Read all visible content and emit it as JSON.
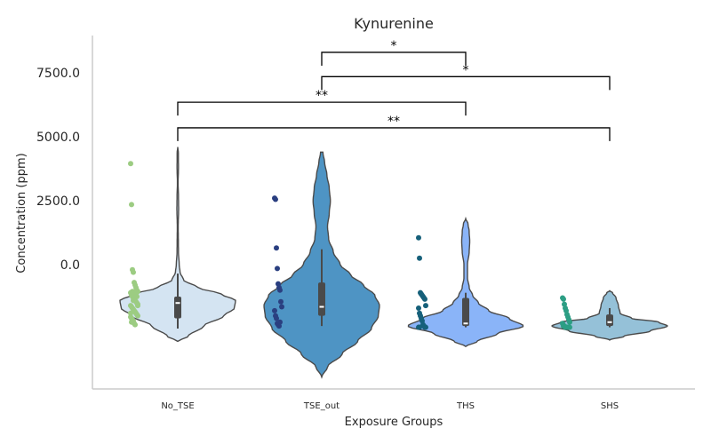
{
  "chart_data": {
    "type": "violin",
    "title": "Kynurenine",
    "xlabel": "Exposure Groups",
    "ylabel": "Concentration (ppm)",
    "ylim": [
      -5500,
      9000
    ],
    "yticks": [
      0,
      2500,
      5000,
      7500
    ],
    "ytick_labels": [
      "0.0",
      "2500.0",
      "5000.0",
      "7500.0"
    ],
    "grid": false,
    "categories": [
      "No_TSE",
      "TSE_out",
      "THS",
      "SHS"
    ],
    "groups": [
      {
        "name": "No_TSE",
        "violin_color": "#d4e4f2",
        "point_color": "#9ccc82",
        "range": [
          -3000,
          4600
        ],
        "box": [
          -2100,
          -1250
        ],
        "whisker": [
          -2500,
          -350
        ],
        "median": -1500,
        "density": [
          [
            -3000,
            0.0
          ],
          [
            -2800,
            0.18
          ],
          [
            -2400,
            0.45
          ],
          [
            -2000,
            0.8
          ],
          [
            -1700,
            0.98
          ],
          [
            -1400,
            1.0
          ],
          [
            -1150,
            0.75
          ],
          [
            -900,
            0.35
          ],
          [
            -600,
            0.1
          ],
          [
            -300,
            0.04
          ],
          [
            0,
            0.025
          ],
          [
            500,
            0.012
          ],
          [
            1500,
            0.008
          ],
          [
            2200,
            0.015
          ],
          [
            2600,
            0.013
          ],
          [
            3200,
            0.006
          ],
          [
            3800,
            0.012
          ],
          [
            4400,
            0.01
          ],
          [
            4600,
            0.0
          ]
        ],
        "points": [
          3950,
          2350,
          -200,
          -300,
          -700,
          -800,
          -900,
          -1000,
          -1050,
          -1100,
          -1200,
          -1250,
          -1300,
          -1350,
          -1400,
          -1450,
          -1500,
          -1550,
          -1600,
          -1650,
          -1700,
          -1750,
          -1800,
          -1850,
          -1900,
          -1950,
          -2000,
          -2050,
          -2100,
          -2150,
          -2200,
          -2300,
          -2350,
          -1150,
          -1250,
          -1600,
          -1900,
          -2250,
          -1050,
          -1400
        ]
      },
      {
        "name": "TSE_out",
        "violin_color": "#4e94c4",
        "point_color": "#2a3f80",
        "range": [
          -4400,
          4400
        ],
        "box": [
          -2000,
          -700
        ],
        "whisker": [
          -2400,
          600
        ],
        "median": -1650,
        "density": [
          [
            -4400,
            0.0
          ],
          [
            -4000,
            0.1
          ],
          [
            -3500,
            0.35
          ],
          [
            -3000,
            0.62
          ],
          [
            -2500,
            0.86
          ],
          [
            -2000,
            0.98
          ],
          [
            -1600,
            1.0
          ],
          [
            -1200,
            0.92
          ],
          [
            -800,
            0.72
          ],
          [
            -400,
            0.5
          ],
          [
            0,
            0.32
          ],
          [
            500,
            0.2
          ],
          [
            1000,
            0.12
          ],
          [
            1500,
            0.1
          ],
          [
            2000,
            0.13
          ],
          [
            2500,
            0.15
          ],
          [
            3000,
            0.13
          ],
          [
            3500,
            0.09
          ],
          [
            4000,
            0.05
          ],
          [
            4400,
            0.02
          ]
        ],
        "points": [
          2600,
          2550,
          650,
          -150,
          -750,
          -900,
          -1000,
          -1450,
          -1650,
          -1800,
          -2000,
          -2100,
          -2300,
          -2350,
          -2400,
          -2250
        ]
      },
      {
        "name": "THS",
        "violin_color": "#8ab4f8",
        "point_color": "#16607a",
        "range": [
          -3200,
          1800
        ],
        "box": [
          -2400,
          -1300
        ],
        "whisker": [
          -2450,
          -1100
        ],
        "median": -2300,
        "density": [
          [
            -3200,
            0.0
          ],
          [
            -3000,
            0.2
          ],
          [
            -2700,
            0.55
          ],
          [
            -2400,
            1.0
          ],
          [
            -2100,
            0.75
          ],
          [
            -1800,
            0.4
          ],
          [
            -1500,
            0.22
          ],
          [
            -1200,
            0.12
          ],
          [
            -900,
            0.06
          ],
          [
            -500,
            0.03
          ],
          [
            0,
            0.03
          ],
          [
            500,
            0.06
          ],
          [
            900,
            0.07
          ],
          [
            1300,
            0.06
          ],
          [
            1600,
            0.04
          ],
          [
            1800,
            0.0
          ]
        ],
        "points": [
          1050,
          250,
          -1100,
          -1150,
          -1200,
          -1250,
          -1300,
          -1350,
          -1600,
          -1700,
          -1900,
          -2000,
          -2100,
          -2200,
          -2350,
          -2400,
          -2450,
          -2450,
          -2450,
          -2450
        ]
      },
      {
        "name": "SHS",
        "violin_color": "#95c1d8",
        "point_color": "#2c9e84",
        "range": [
          -2950,
          -1020
        ],
        "box": [
          -2400,
          -1950
        ],
        "whisker": [
          -2450,
          -1700
        ],
        "median": -2250,
        "density": [
          [
            -2950,
            0.0
          ],
          [
            -2800,
            0.25
          ],
          [
            -2600,
            0.7
          ],
          [
            -2400,
            1.0
          ],
          [
            -2250,
            0.85
          ],
          [
            -2100,
            0.38
          ],
          [
            -1900,
            0.18
          ],
          [
            -1600,
            0.15
          ],
          [
            -1300,
            0.11
          ],
          [
            -1100,
            0.05
          ],
          [
            -1020,
            0.0
          ]
        ],
        "points": [
          -1300,
          -1350,
          -1550,
          -1700,
          -1800,
          -1950,
          -2050,
          -2150,
          -2250,
          -2300,
          -2400,
          -2400,
          -2450,
          -2450,
          -2450,
          -2450,
          -2450,
          -2450
        ]
      }
    ],
    "annotations": [
      {
        "from": "TSE_out",
        "to": "THS",
        "y": 8300,
        "text": "*"
      },
      {
        "from": "TSE_out",
        "to": "SHS",
        "y": 7350,
        "text": "*"
      },
      {
        "from": "No_TSE",
        "to": "THS",
        "y": 6350,
        "text": "**"
      },
      {
        "from": "No_TSE",
        "to": "SHS",
        "y": 5350,
        "text": "**"
      }
    ]
  }
}
